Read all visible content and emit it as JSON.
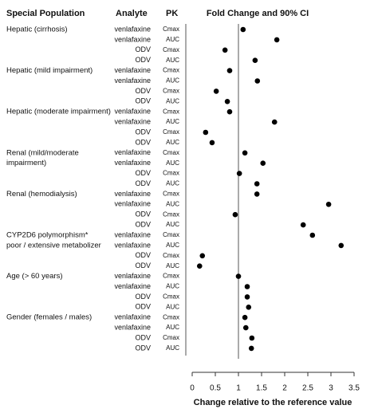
{
  "chart_data": {
    "type": "dot",
    "column_headers": {
      "population": "Special Population",
      "analyte": "Analyte",
      "pk": "PK"
    },
    "title": "Fold Change and 90% CI",
    "x_label": "Change relative to the reference value",
    "xlim": [
      0,
      3.5
    ],
    "xticks": [
      0,
      0.5,
      1,
      1.5,
      2,
      2.5,
      3,
      3.5
    ],
    "reference_line": 1,
    "color": "#000000",
    "groups": [
      {
        "label": [
          "Hepatic (cirrhosis)"
        ],
        "rows": [
          {
            "analyte": "venlafaxine",
            "pk": "Cmax",
            "value": 1.1
          },
          {
            "analyte": "venlafaxine",
            "pk": "AUC",
            "value": 1.83
          },
          {
            "analyte": "ODV",
            "pk": "Cmax",
            "value": 0.71
          },
          {
            "analyte": "ODV",
            "pk": "AUC",
            "value": 1.36
          }
        ]
      },
      {
        "label": [
          "Hepatic (mild impairment)"
        ],
        "rows": [
          {
            "analyte": "venlafaxine",
            "pk": "Cmax",
            "value": 0.81
          },
          {
            "analyte": "venlafaxine",
            "pk": "AUC",
            "value": 1.41
          },
          {
            "analyte": "ODV",
            "pk": "Cmax",
            "value": 0.52
          },
          {
            "analyte": "ODV",
            "pk": "AUC",
            "value": 0.76
          }
        ]
      },
      {
        "label": [
          "Hepatic (moderate impairment)"
        ],
        "rows": [
          {
            "analyte": "venlafaxine",
            "pk": "Cmax",
            "value": 0.81
          },
          {
            "analyte": "venlafaxine",
            "pk": "AUC",
            "value": 1.78
          },
          {
            "analyte": "ODV",
            "pk": "Cmax",
            "value": 0.29
          },
          {
            "analyte": "ODV",
            "pk": "AUC",
            "value": 0.43
          }
        ]
      },
      {
        "label": [
          "Renal (mild/moderate",
          "impairment)"
        ],
        "rows": [
          {
            "analyte": "venlafaxine",
            "pk": "Cmax",
            "value": 1.14
          },
          {
            "analyte": "venlafaxine",
            "pk": "AUC",
            "value": 1.53
          },
          {
            "analyte": "ODV",
            "pk": "Cmax",
            "value": 1.02
          },
          {
            "analyte": "ODV",
            "pk": "AUC",
            "value": 1.4
          }
        ]
      },
      {
        "label": [
          "Renal (hemodialysis)"
        ],
        "rows": [
          {
            "analyte": "venlafaxine",
            "pk": "Cmax",
            "value": 1.4
          },
          {
            "analyte": "venlafaxine",
            "pk": "AUC",
            "value": 2.95
          },
          {
            "analyte": "ODV",
            "pk": "Cmax",
            "value": 0.93
          },
          {
            "analyte": "ODV",
            "pk": "AUC",
            "value": 2.4
          }
        ]
      },
      {
        "label": [
          "CYP2D6 polymorphism*",
          "poor / extensive metabolizer"
        ],
        "rows": [
          {
            "analyte": "venlafaxine",
            "pk": "Cmax",
            "value": 2.6
          },
          {
            "analyte": "venlafaxine",
            "pk": "AUC",
            "value": 3.22
          },
          {
            "analyte": "ODV",
            "pk": "Cmax",
            "value": 0.22
          },
          {
            "analyte": "ODV",
            "pk": "AUC",
            "value": 0.16
          }
        ]
      },
      {
        "label": [
          "Age (> 60 years)"
        ],
        "rows": [
          {
            "analyte": "venlafaxine",
            "pk": "Cmax",
            "value": 1.0
          },
          {
            "analyte": "venlafaxine",
            "pk": "AUC",
            "value": 1.19
          },
          {
            "analyte": "ODV",
            "pk": "Cmax",
            "value": 1.19
          },
          {
            "analyte": "ODV",
            "pk": "AUC",
            "value": 1.22
          }
        ]
      },
      {
        "label": [
          "Gender (females / males)"
        ],
        "rows": [
          {
            "analyte": "venlafaxine",
            "pk": "Cmax",
            "value": 1.14
          },
          {
            "analyte": "venlafaxine",
            "pk": "AUC",
            "value": 1.16
          },
          {
            "analyte": "ODV",
            "pk": "Cmax",
            "value": 1.29
          },
          {
            "analyte": "ODV",
            "pk": "AUC",
            "value": 1.28
          }
        ]
      }
    ]
  }
}
